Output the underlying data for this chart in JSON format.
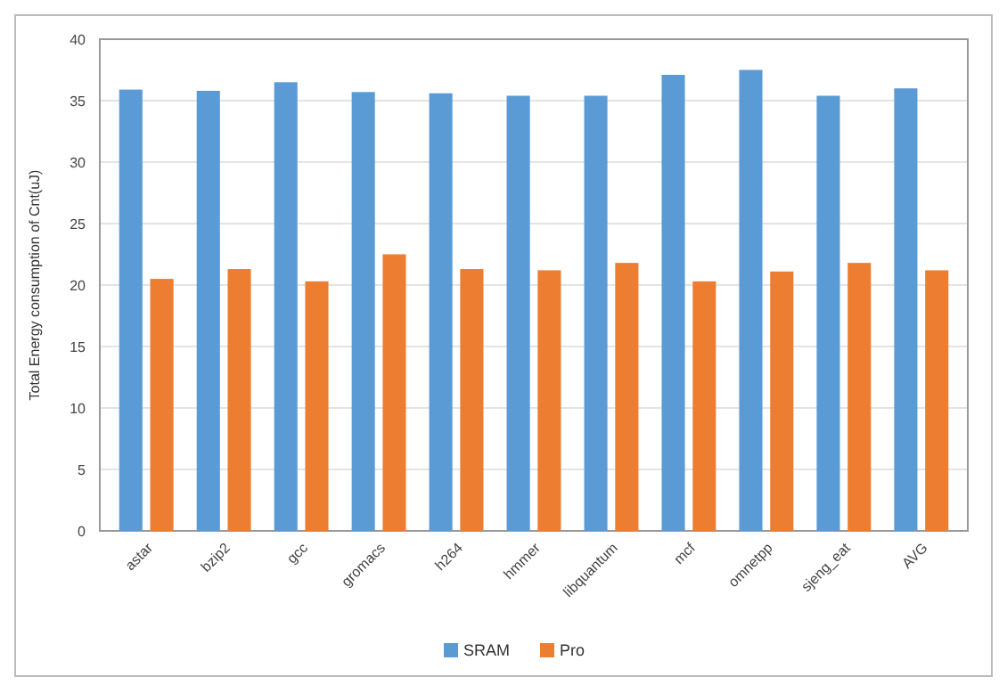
{
  "chart_data": {
    "type": "bar",
    "ylabel": "Total Energy consumption of Cnt(uJ)",
    "categories": [
      "astar",
      "bzip2",
      "gcc",
      "gromacs",
      "h264",
      "hmmer",
      "libquantum",
      "mcf",
      "omnetpp",
      "sjeng_eat",
      "AVG"
    ],
    "series": [
      {
        "name": "SRAM",
        "color": "#5b9bd5",
        "values": [
          35.9,
          35.8,
          36.5,
          35.7,
          35.6,
          35.4,
          35.4,
          37.1,
          37.5,
          35.4,
          36.0
        ]
      },
      {
        "name": "Pro",
        "color": "#ed7d31",
        "values": [
          20.5,
          21.3,
          20.3,
          22.5,
          21.3,
          21.2,
          21.8,
          20.3,
          21.1,
          21.8,
          21.2
        ]
      }
    ],
    "ylim": [
      0,
      40
    ],
    "yticks": [
      0,
      5,
      10,
      15,
      20,
      25,
      30,
      35,
      40
    ],
    "grid": "y",
    "legend": "bottom"
  }
}
